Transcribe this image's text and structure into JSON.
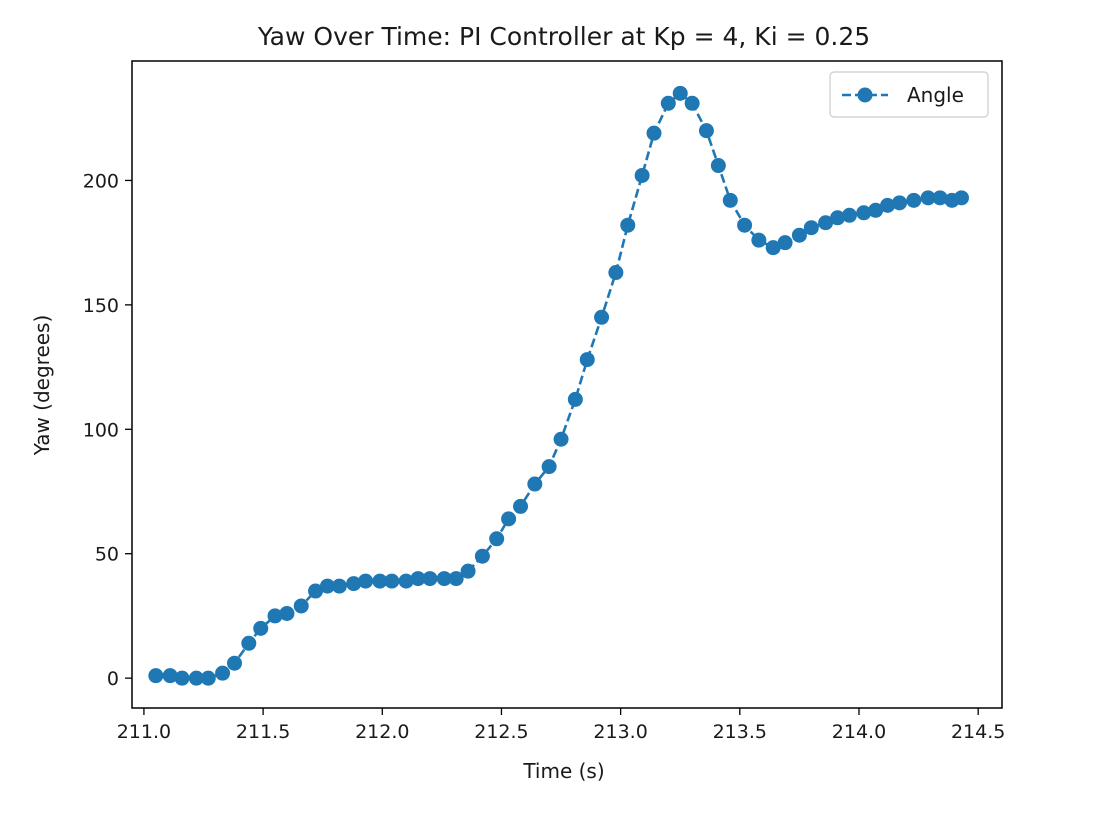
{
  "chart_data": {
    "type": "line",
    "title": "Yaw Over Time: PI Controller at Kp = 4, Ki = 0.25",
    "xlabel": "Time (s)",
    "ylabel": "Yaw (degrees)",
    "xlim": [
      210.95,
      214.6
    ],
    "ylim": [
      -12,
      248
    ],
    "xticks": [
      211.0,
      211.5,
      212.0,
      212.5,
      213.0,
      213.5,
      214.0,
      214.5
    ],
    "xtick_labels": [
      "211.0",
      "211.5",
      "212.0",
      "212.5",
      "213.0",
      "213.5",
      "214.0",
      "214.5"
    ],
    "yticks": [
      0,
      50,
      100,
      150,
      200
    ],
    "ytick_labels": [
      "0",
      "50",
      "100",
      "150",
      "200"
    ],
    "grid": false,
    "legend_position": "top-right",
    "series": [
      {
        "name": "Angle",
        "color": "#1f77b4",
        "line_style": "dashed",
        "marker": "circle",
        "x": [
          211.05,
          211.11,
          211.16,
          211.22,
          211.27,
          211.33,
          211.38,
          211.44,
          211.49,
          211.55,
          211.6,
          211.66,
          211.72,
          211.77,
          211.82,
          211.88,
          211.93,
          211.99,
          212.04,
          212.1,
          212.15,
          212.2,
          212.26,
          212.31,
          212.36,
          212.42,
          212.48,
          212.53,
          212.58,
          212.64,
          212.7,
          212.75,
          212.81,
          212.86,
          212.92,
          212.98,
          213.03,
          213.09,
          213.14,
          213.2,
          213.25,
          213.3,
          213.36,
          213.41,
          213.46,
          213.52,
          213.58,
          213.64,
          213.69,
          213.75,
          213.8,
          213.86,
          213.91,
          213.96,
          214.02,
          214.07,
          214.12,
          214.17,
          214.23,
          214.29,
          214.34,
          214.39,
          214.43
        ],
        "y": [
          1,
          1,
          0,
          0,
          0,
          2,
          6,
          14,
          20,
          25,
          26,
          29,
          35,
          37,
          37,
          38,
          39,
          39,
          39,
          39,
          40,
          40,
          40,
          40,
          43,
          49,
          56,
          64,
          69,
          78,
          85,
          96,
          112,
          128,
          145,
          163,
          182,
          202,
          219,
          231,
          235,
          231,
          220,
          206,
          192,
          182,
          176,
          173,
          175,
          178,
          181,
          183,
          185,
          186,
          187,
          188,
          190,
          191,
          192,
          193,
          193,
          192,
          193
        ]
      }
    ]
  }
}
